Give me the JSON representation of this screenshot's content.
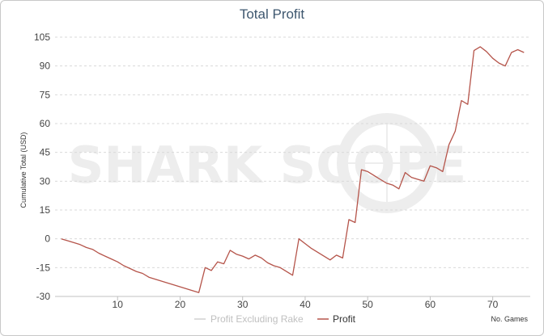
{
  "chart_data": {
    "type": "line",
    "title": "Total Profit",
    "ylabel": "Cumulative Total (USD)",
    "xlabel": "No. Games",
    "xlim": [
      0,
      76
    ],
    "ylim": [
      -30,
      105
    ],
    "x_ticks": [
      10,
      20,
      30,
      40,
      50,
      60,
      70
    ],
    "y_ticks": [
      105,
      90,
      75,
      60,
      45,
      30,
      15,
      0,
      -15,
      -30
    ],
    "grid": true,
    "legend_placement": "bottom-center",
    "watermark": "SHARK SCOPE",
    "series": [
      {
        "name": "Profit Excluding Rake",
        "color": "#d0d0d0",
        "visible": false,
        "values": []
      },
      {
        "name": "Profit",
        "color": "#b5544a",
        "visible": true,
        "x": [
          1,
          2,
          3,
          4,
          5,
          6,
          7,
          8,
          9,
          10,
          11,
          12,
          13,
          14,
          15,
          16,
          17,
          18,
          19,
          20,
          21,
          22,
          23,
          24,
          25,
          26,
          27,
          28,
          29,
          30,
          31,
          32,
          33,
          34,
          35,
          36,
          37,
          38,
          39,
          40,
          41,
          42,
          43,
          44,
          45,
          46,
          47,
          48,
          49,
          50,
          51,
          52,
          53,
          54,
          55,
          56,
          57,
          58,
          59,
          60,
          61,
          62,
          63,
          64,
          65,
          66,
          67,
          68,
          69,
          70,
          71,
          72,
          73,
          74,
          75
        ],
        "values": [
          0,
          -1,
          -2,
          -3,
          -4.5,
          -5.5,
          -7.5,
          -9,
          -10.5,
          -12,
          -14,
          -15.5,
          -17,
          -18,
          -20,
          -21,
          -22,
          -23,
          -24,
          -25,
          -26,
          -27,
          -28,
          -15,
          -16.5,
          -12,
          -13,
          -6,
          -8,
          -9,
          -10.5,
          -8.5,
          -10,
          -12.5,
          -14,
          -15,
          -17,
          -19,
          0,
          -2.5,
          -5,
          -7,
          -9,
          -11,
          -8.5,
          -10,
          10,
          8.5,
          36,
          35,
          33,
          31,
          29,
          28,
          26,
          34.5,
          32,
          31,
          30,
          38,
          37,
          35,
          49,
          56,
          72,
          70,
          98,
          100,
          97.5,
          94,
          91.5,
          90,
          97,
          98.5,
          97
        ]
      }
    ]
  }
}
